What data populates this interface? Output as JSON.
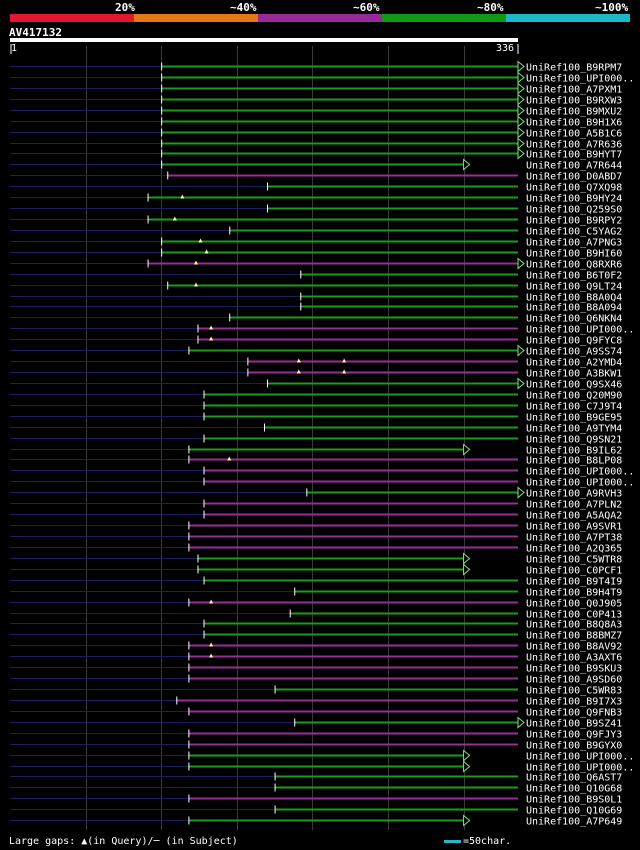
{
  "query": {
    "id": "AV417132",
    "start": "1",
    "end": "336",
    "length": 336
  },
  "percent_legend": [
    {
      "label": "20%",
      "color": "#e3162f"
    },
    {
      "label": "~40%",
      "color": "#e37817"
    },
    {
      "label": "~60%",
      "color": "#962a96"
    },
    {
      "label": "~80%",
      "color": "#139813"
    },
    {
      "label": "~100%",
      "color": "#1bb8c8"
    }
  ],
  "footer": {
    "gaps_text": "Large gaps: ▲(in Query)/─ (in Subject)",
    "scale_text": "=50char.",
    "scale_color": "#2ab7c5"
  },
  "chart_data": {
    "type": "alignment",
    "query_length": 336,
    "tick_positions": [
      50,
      100,
      150,
      200,
      250,
      300
    ],
    "hits": [
      {
        "label": "UniRef100_B9RPM7",
        "start": 100,
        "end": 336,
        "color": "green",
        "arrow": true
      },
      {
        "label": "UniRef100_UPI000..",
        "start": 100,
        "end": 336,
        "color": "green",
        "arrow": true
      },
      {
        "label": "UniRef100_A7PXM1",
        "start": 100,
        "end": 336,
        "color": "green",
        "arrow": true
      },
      {
        "label": "UniRef100_B9RXW3",
        "start": 100,
        "end": 336,
        "color": "green",
        "arrow": true
      },
      {
        "label": "UniRef100_B9MXU2",
        "start": 100,
        "end": 336,
        "color": "green",
        "arrow": true
      },
      {
        "label": "UniRef100_B9H1X6",
        "start": 100,
        "end": 336,
        "color": "green",
        "arrow": true
      },
      {
        "label": "UniRef100_A5B1C6",
        "start": 100,
        "end": 336,
        "color": "green",
        "arrow": true
      },
      {
        "label": "UniRef100_A7R636",
        "start": 100,
        "end": 336,
        "color": "green",
        "arrow": true
      },
      {
        "label": "UniRef100_B9HYT7",
        "start": 100,
        "end": 336,
        "color": "green",
        "arrow": true
      },
      {
        "label": "UniRef100_A7R644",
        "start": 100,
        "end": 300,
        "color": "green",
        "arrow": true
      },
      {
        "label": "UniRef100_D0ABD7",
        "start": 104,
        "end": 336,
        "color": "purple",
        "arrow": false
      },
      {
        "label": "UniRef100_Q7XQ98",
        "start": 170,
        "end": 336,
        "color": "green",
        "arrow": false
      },
      {
        "label": "UniRef100_B9HY24",
        "start": 91,
        "end": 336,
        "color": "green",
        "arrow": false,
        "gaps": [
          114
        ]
      },
      {
        "label": "UniRef100_Q259S0",
        "start": 170,
        "end": 336,
        "color": "green",
        "arrow": false
      },
      {
        "label": "UniRef100_B9RPY2",
        "start": 91,
        "end": 336,
        "color": "green",
        "arrow": false,
        "gaps": [
          109
        ]
      },
      {
        "label": "UniRef100_C5YAG2",
        "start": 145,
        "end": 336,
        "color": "green",
        "arrow": false
      },
      {
        "label": "UniRef100_A7PNG3",
        "start": 100,
        "end": 336,
        "color": "green",
        "arrow": false,
        "gaps": [
          126
        ]
      },
      {
        "label": "UniRef100_B9HI60",
        "start": 100,
        "end": 336,
        "color": "green",
        "arrow": false,
        "gaps": [
          130
        ]
      },
      {
        "label": "UniRef100_Q8RXR6",
        "start": 91,
        "end": 336,
        "color": "purple",
        "arrow": true,
        "gaps": [
          123
        ]
      },
      {
        "label": "UniRef100_B6T0F2",
        "start": 192,
        "end": 336,
        "color": "green",
        "arrow": false
      },
      {
        "label": "UniRef100_Q9LT24",
        "start": 104,
        "end": 336,
        "color": "green",
        "arrow": false,
        "gaps": [
          123
        ]
      },
      {
        "label": "UniRef100_B8A0Q4",
        "start": 192,
        "end": 336,
        "color": "green",
        "arrow": false
      },
      {
        "label": "UniRef100_B8A094",
        "start": 192,
        "end": 336,
        "color": "green",
        "arrow": false
      },
      {
        "label": "UniRef100_Q6NKN4",
        "start": 145,
        "end": 336,
        "color": "green",
        "arrow": false
      },
      {
        "label": "UniRef100_UPI000..",
        "start": 124,
        "end": 336,
        "color": "purple",
        "arrow": false,
        "gaps": [
          133
        ]
      },
      {
        "label": "UniRef100_Q9FYC8",
        "start": 124,
        "end": 336,
        "color": "purple",
        "arrow": false,
        "gaps": [
          133
        ]
      },
      {
        "label": "UniRef100_A9SS74",
        "start": 118,
        "end": 336,
        "color": "green",
        "arrow": true
      },
      {
        "label": "UniRef100_A2YMD4",
        "start": 157,
        "end": 336,
        "color": "purple",
        "arrow": false,
        "gaps": [
          191,
          221
        ]
      },
      {
        "label": "UniRef100_A3BKW1",
        "start": 157,
        "end": 336,
        "color": "purple",
        "arrow": false,
        "gaps": [
          191,
          221
        ]
      },
      {
        "label": "UniRef100_Q9SX46",
        "start": 170,
        "end": 336,
        "color": "green",
        "arrow": true
      },
      {
        "label": "UniRef100_Q20M90",
        "start": 128,
        "end": 336,
        "color": "green",
        "arrow": false
      },
      {
        "label": "UniRef100_C7J9T4",
        "start": 128,
        "end": 336,
        "color": "green",
        "arrow": false
      },
      {
        "label": "UniRef100_B9GE95",
        "start": 128,
        "end": 336,
        "color": "green",
        "arrow": false
      },
      {
        "label": "UniRef100_A9TYM4",
        "start": 168,
        "end": 336,
        "color": "green",
        "arrow": false
      },
      {
        "label": "UniRef100_Q9SN21",
        "start": 128,
        "end": 336,
        "color": "green",
        "arrow": false
      },
      {
        "label": "UniRef100_B9IL62",
        "start": 118,
        "end": 300,
        "color": "green",
        "arrow": true
      },
      {
        "label": "UniRef100_B8LP08",
        "start": 118,
        "end": 336,
        "color": "purple",
        "arrow": false,
        "gaps": [
          145
        ]
      },
      {
        "label": "UniRef100_UPI000..",
        "start": 128,
        "end": 336,
        "color": "purple",
        "arrow": false
      },
      {
        "label": "UniRef100_UPI000..",
        "start": 128,
        "end": 336,
        "color": "purple",
        "arrow": false
      },
      {
        "label": "UniRef100_A9RVH3",
        "start": 196,
        "end": 336,
        "color": "green",
        "arrow": true
      },
      {
        "label": "UniRef100_A7PLN2",
        "start": 128,
        "end": 336,
        "color": "purple",
        "arrow": false
      },
      {
        "label": "UniRef100_A5AQA2",
        "start": 128,
        "end": 336,
        "color": "purple",
        "arrow": false
      },
      {
        "label": "UniRef100_A9SVR1",
        "start": 118,
        "end": 336,
        "color": "purple",
        "arrow": false
      },
      {
        "label": "UniRef100_A7PT38",
        "start": 118,
        "end": 336,
        "color": "purple",
        "arrow": false
      },
      {
        "label": "UniRef100_A2Q365",
        "start": 118,
        "end": 336,
        "color": "purple",
        "arrow": false
      },
      {
        "label": "UniRef100_C5WTR8",
        "start": 124,
        "end": 300,
        "color": "green",
        "arrow": true
      },
      {
        "label": "UniRef100_C0PCF1",
        "start": 124,
        "end": 300,
        "color": "green",
        "arrow": true
      },
      {
        "label": "UniRef100_B9T4I9",
        "start": 128,
        "end": 336,
        "color": "green",
        "arrow": false
      },
      {
        "label": "UniRef100_B9H4T9",
        "start": 188,
        "end": 336,
        "color": "green",
        "arrow": false
      },
      {
        "label": "UniRef100_Q0J905",
        "start": 118,
        "end": 336,
        "color": "purple",
        "arrow": false,
        "gaps": [
          133
        ]
      },
      {
        "label": "UniRef100_C0P413",
        "start": 185,
        "end": 336,
        "color": "green",
        "arrow": false
      },
      {
        "label": "UniRef100_B8Q8A3",
        "start": 128,
        "end": 336,
        "color": "green",
        "arrow": false
      },
      {
        "label": "UniRef100_B8BMZ7",
        "start": 128,
        "end": 336,
        "color": "green",
        "arrow": false
      },
      {
        "label": "UniRef100_B8AV92",
        "start": 118,
        "end": 336,
        "color": "purple",
        "arrow": false,
        "gaps": [
          133
        ]
      },
      {
        "label": "UniRef100_A3AXT6",
        "start": 118,
        "end": 336,
        "color": "purple",
        "arrow": false,
        "gaps": [
          133
        ]
      },
      {
        "label": "UniRef100_B9SKU3",
        "start": 118,
        "end": 336,
        "color": "purple",
        "arrow": false
      },
      {
        "label": "UniRef100_A9SD60",
        "start": 118,
        "end": 336,
        "color": "purple",
        "arrow": false
      },
      {
        "label": "UniRef100_C5WR83",
        "start": 175,
        "end": 336,
        "color": "green",
        "arrow": false
      },
      {
        "label": "UniRef100_B9I7X3",
        "start": 110,
        "end": 336,
        "color": "purple",
        "arrow": false
      },
      {
        "label": "UniRef100_Q9FNB3",
        "start": 118,
        "end": 336,
        "color": "purple",
        "arrow": false
      },
      {
        "label": "UniRef100_B9SZ41",
        "start": 188,
        "end": 336,
        "color": "green",
        "arrow": true
      },
      {
        "label": "UniRef100_Q9FJY3",
        "start": 118,
        "end": 336,
        "color": "purple",
        "arrow": false
      },
      {
        "label": "UniRef100_B9GYX0",
        "start": 118,
        "end": 336,
        "color": "purple",
        "arrow": false
      },
      {
        "label": "UniRef100_UPI000..",
        "start": 118,
        "end": 300,
        "color": "green",
        "arrow": true
      },
      {
        "label": "UniRef100_UPI000..",
        "start": 118,
        "end": 300,
        "color": "green",
        "arrow": true
      },
      {
        "label": "UniRef100_Q6AST7",
        "start": 175,
        "end": 336,
        "color": "green",
        "arrow": false
      },
      {
        "label": "UniRef100_Q10G68",
        "start": 175,
        "end": 336,
        "color": "green",
        "arrow": false
      },
      {
        "label": "UniRef100_B9S0L1",
        "start": 118,
        "end": 336,
        "color": "purple",
        "arrow": false
      },
      {
        "label": "UniRef100_Q10G69",
        "start": 175,
        "end": 336,
        "color": "green",
        "arrow": false
      },
      {
        "label": "UniRef100_A7P649",
        "start": 118,
        "end": 300,
        "color": "green",
        "arrow": true
      }
    ]
  }
}
